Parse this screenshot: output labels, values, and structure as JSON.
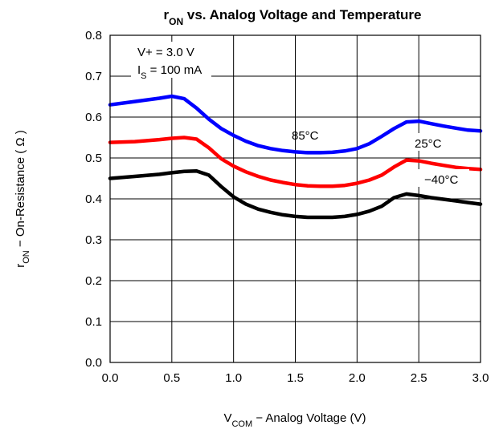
{
  "chart_data": {
    "type": "line",
    "title": "rON vs. Analog Voltage and Temperature",
    "title_parts": {
      "main": "r",
      "sub": "ON",
      "rest": " vs. Analog Voltage and Temperature"
    },
    "xlabel": "VCOM − Analog Voltage (V)",
    "xlabel_parts": {
      "main": "V",
      "sub": "COM",
      "rest": " − Analog Voltage (V)"
    },
    "ylabel": "rON − On-Resistance ( Ω )",
    "ylabel_parts": {
      "main": "r",
      "sub": "ON",
      "rest": " −  On-Resistance ( Ω )"
    },
    "xlim": [
      0,
      3.0
    ],
    "ylim": [
      0,
      0.8
    ],
    "xticks": [
      "0.0",
      "0.5",
      "1.0",
      "1.5",
      "2.0",
      "2.5",
      "3.0"
    ],
    "yticks": [
      "0.0",
      "0.1",
      "0.2",
      "0.3",
      "0.4",
      "0.5",
      "0.6",
      "0.7",
      "0.8"
    ],
    "grid": true,
    "conditions": {
      "line1": "V+ = 3.0 V",
      "line2_parts": {
        "main": "I",
        "sub": "S",
        "rest": " = 100 mA"
      }
    },
    "series": [
      {
        "name": "85°C",
        "color": "#0000ff",
        "x": [
          0.0,
          0.2,
          0.4,
          0.5,
          0.6,
          0.7,
          0.8,
          0.9,
          1.0,
          1.1,
          1.2,
          1.3,
          1.4,
          1.5,
          1.6,
          1.7,
          1.8,
          1.9,
          2.0,
          2.1,
          2.2,
          2.3,
          2.4,
          2.5,
          2.6,
          2.7,
          2.8,
          2.9,
          3.0
        ],
        "values": [
          0.63,
          0.638,
          0.646,
          0.651,
          0.645,
          0.622,
          0.595,
          0.572,
          0.555,
          0.541,
          0.53,
          0.523,
          0.518,
          0.515,
          0.513,
          0.513,
          0.514,
          0.517,
          0.523,
          0.535,
          0.553,
          0.572,
          0.588,
          0.59,
          0.584,
          0.578,
          0.573,
          0.568,
          0.566
        ]
      },
      {
        "name": "25°C",
        "color": "#ff0000",
        "x": [
          0.0,
          0.2,
          0.4,
          0.5,
          0.6,
          0.7,
          0.8,
          0.9,
          1.0,
          1.1,
          1.2,
          1.3,
          1.4,
          1.5,
          1.6,
          1.7,
          1.8,
          1.9,
          2.0,
          2.1,
          2.2,
          2.3,
          2.4,
          2.5,
          2.6,
          2.7,
          2.8,
          2.9,
          3.0
        ],
        "values": [
          0.538,
          0.54,
          0.545,
          0.548,
          0.55,
          0.546,
          0.525,
          0.498,
          0.48,
          0.466,
          0.455,
          0.446,
          0.44,
          0.435,
          0.432,
          0.431,
          0.431,
          0.433,
          0.438,
          0.446,
          0.458,
          0.478,
          0.495,
          0.493,
          0.487,
          0.482,
          0.477,
          0.474,
          0.472
        ]
      },
      {
        "name": "−40°C",
        "color": "#000000",
        "x": [
          0.0,
          0.2,
          0.4,
          0.5,
          0.6,
          0.7,
          0.8,
          0.9,
          1.0,
          1.1,
          1.2,
          1.3,
          1.4,
          1.5,
          1.6,
          1.7,
          1.8,
          1.9,
          2.0,
          2.1,
          2.2,
          2.3,
          2.4,
          2.5,
          2.6,
          2.7,
          2.8,
          2.9,
          3.0
        ],
        "values": [
          0.45,
          0.455,
          0.46,
          0.464,
          0.467,
          0.468,
          0.458,
          0.43,
          0.405,
          0.387,
          0.375,
          0.367,
          0.361,
          0.357,
          0.355,
          0.355,
          0.355,
          0.357,
          0.362,
          0.37,
          0.382,
          0.403,
          0.412,
          0.408,
          0.403,
          0.399,
          0.395,
          0.391,
          0.387
        ]
      }
    ]
  }
}
